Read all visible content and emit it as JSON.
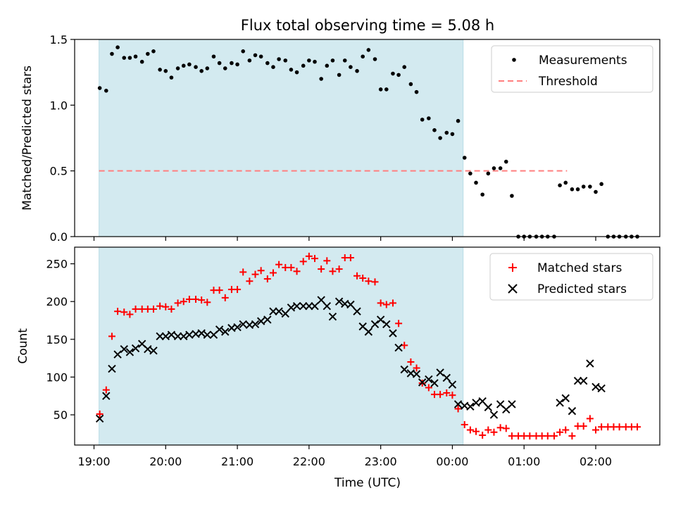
{
  "title": "Flux total observing time = 5.08 h",
  "xlabel": "Time (UTC)",
  "x_tick_labels": [
    "19:00",
    "20:00",
    "21:00",
    "22:00",
    "23:00",
    "00:00",
    "01:00",
    "02:00"
  ],
  "chart_data": [
    {
      "type": "scatter",
      "ylabel": "Matched/Predicted stars",
      "ylim": [
        0,
        1.5
      ],
      "yticks": [
        "0.0",
        "0.5",
        "1.0",
        "1.5"
      ],
      "x_unit": "hours since 19:00 UTC",
      "shaded_region": {
        "x_start": 0.07,
        "x_end": 5.15,
        "color": "#d3eaf0"
      },
      "legend": {
        "position": "top-right",
        "entries": [
          "Measurements",
          "Threshold"
        ]
      },
      "threshold": {
        "name": "Threshold",
        "y": 0.5,
        "x_range": [
          0.07,
          6.6
        ],
        "color": "#ff7f7f"
      },
      "series": [
        {
          "name": "Measurements",
          "color": "#000000",
          "points": [
            [
              0.08,
              1.13
            ],
            [
              0.17,
              1.11
            ],
            [
              0.25,
              1.39
            ],
            [
              0.33,
              1.44
            ],
            [
              0.42,
              1.36
            ],
            [
              0.5,
              1.36
            ],
            [
              0.58,
              1.37
            ],
            [
              0.67,
              1.33
            ],
            [
              0.75,
              1.39
            ],
            [
              0.83,
              1.41
            ],
            [
              0.92,
              1.27
            ],
            [
              1.0,
              1.26
            ],
            [
              1.08,
              1.21
            ],
            [
              1.17,
              1.28
            ],
            [
              1.25,
              1.3
            ],
            [
              1.33,
              1.31
            ],
            [
              1.42,
              1.29
            ],
            [
              1.5,
              1.26
            ],
            [
              1.58,
              1.28
            ],
            [
              1.67,
              1.37
            ],
            [
              1.75,
              1.32
            ],
            [
              1.83,
              1.28
            ],
            [
              1.92,
              1.32
            ],
            [
              2.0,
              1.31
            ],
            [
              2.08,
              1.41
            ],
            [
              2.17,
              1.34
            ],
            [
              2.25,
              1.38
            ],
            [
              2.33,
              1.37
            ],
            [
              2.42,
              1.32
            ],
            [
              2.5,
              1.29
            ],
            [
              2.58,
              1.35
            ],
            [
              2.67,
              1.34
            ],
            [
              2.75,
              1.27
            ],
            [
              2.83,
              1.25
            ],
            [
              2.92,
              1.3
            ],
            [
              3.0,
              1.34
            ],
            [
              3.08,
              1.33
            ],
            [
              3.17,
              1.2
            ],
            [
              3.25,
              1.3
            ],
            [
              3.33,
              1.34
            ],
            [
              3.42,
              1.23
            ],
            [
              3.5,
              1.34
            ],
            [
              3.58,
              1.29
            ],
            [
              3.67,
              1.26
            ],
            [
              3.75,
              1.37
            ],
            [
              3.83,
              1.42
            ],
            [
              3.92,
              1.35
            ],
            [
              4.0,
              1.12
            ],
            [
              4.08,
              1.12
            ],
            [
              4.17,
              1.24
            ],
            [
              4.25,
              1.23
            ],
            [
              4.33,
              1.29
            ],
            [
              4.42,
              1.16
            ],
            [
              4.5,
              1.1
            ],
            [
              4.58,
              0.89
            ],
            [
              4.67,
              0.9
            ],
            [
              4.75,
              0.81
            ],
            [
              4.83,
              0.75
            ],
            [
              4.92,
              0.79
            ],
            [
              5.0,
              0.78
            ],
            [
              5.08,
              0.88
            ],
            [
              5.17,
              0.6
            ],
            [
              5.25,
              0.48
            ],
            [
              5.33,
              0.41
            ],
            [
              5.42,
              0.32
            ],
            [
              5.5,
              0.48
            ],
            [
              5.58,
              0.52
            ],
            [
              5.67,
              0.52
            ],
            [
              5.75,
              0.57
            ],
            [
              5.83,
              0.31
            ],
            [
              5.92,
              0.0
            ],
            [
              6.0,
              0.0
            ],
            [
              6.08,
              0.0
            ],
            [
              6.17,
              0.0
            ],
            [
              6.25,
              0.0
            ],
            [
              6.33,
              0.0
            ],
            [
              6.42,
              0.0
            ],
            [
              6.5,
              0.39
            ],
            [
              6.58,
              0.41
            ],
            [
              6.67,
              0.36
            ],
            [
              6.75,
              0.36
            ],
            [
              6.83,
              0.38
            ],
            [
              6.92,
              0.38
            ],
            [
              7.0,
              0.34
            ],
            [
              7.08,
              0.4
            ],
            [
              7.17,
              0.0
            ],
            [
              7.25,
              0.0
            ],
            [
              7.33,
              0.0
            ],
            [
              7.42,
              0.0
            ],
            [
              7.5,
              0.0
            ],
            [
              7.58,
              0.0
            ]
          ]
        }
      ]
    },
    {
      "type": "scatter",
      "ylabel": "Count",
      "ylim": [
        10,
        272
      ],
      "yticks": [
        "50",
        "100",
        "150",
        "200",
        "250"
      ],
      "x_unit": "hours since 19:00 UTC",
      "shaded_region": {
        "x_start": 0.07,
        "x_end": 5.15,
        "color": "#d3eaf0"
      },
      "legend": {
        "position": "top-right",
        "entries": [
          "Matched stars",
          "Predicted stars"
        ]
      },
      "series": [
        {
          "name": "Matched stars",
          "marker": "plus",
          "color": "#ff0000",
          "points": [
            [
              0.08,
              51
            ],
            [
              0.17,
              83
            ],
            [
              0.25,
              154
            ],
            [
              0.33,
              187
            ],
            [
              0.42,
              186
            ],
            [
              0.5,
              183
            ],
            [
              0.58,
              190
            ],
            [
              0.67,
              190
            ],
            [
              0.75,
              190
            ],
            [
              0.83,
              190
            ],
            [
              0.92,
              194
            ],
            [
              1.0,
              193
            ],
            [
              1.08,
              190
            ],
            [
              1.17,
              198
            ],
            [
              1.25,
              200
            ],
            [
              1.33,
              203
            ],
            [
              1.42,
              203
            ],
            [
              1.5,
              202
            ],
            [
              1.58,
              199
            ],
            [
              1.67,
              215
            ],
            [
              1.75,
              215
            ],
            [
              1.83,
              205
            ],
            [
              1.92,
              216
            ],
            [
              2.0,
              216
            ],
            [
              2.08,
              239
            ],
            [
              2.17,
              227
            ],
            [
              2.25,
              236
            ],
            [
              2.33,
              241
            ],
            [
              2.42,
              230
            ],
            [
              2.5,
              238
            ],
            [
              2.58,
              249
            ],
            [
              2.67,
              245
            ],
            [
              2.75,
              245
            ],
            [
              2.83,
              240
            ],
            [
              2.92,
              253
            ],
            [
              3.0,
              260
            ],
            [
              3.08,
              257
            ],
            [
              3.17,
              243
            ],
            [
              3.25,
              254
            ],
            [
              3.33,
              240
            ],
            [
              3.42,
              243
            ],
            [
              3.5,
              258
            ],
            [
              3.58,
              258
            ],
            [
              3.67,
              234
            ],
            [
              3.75,
              231
            ],
            [
              3.83,
              227
            ],
            [
              3.92,
              226
            ],
            [
              4.0,
              198
            ],
            [
              4.08,
              196
            ],
            [
              4.17,
              198
            ],
            [
              4.25,
              171
            ],
            [
              4.33,
              142
            ],
            [
              4.42,
              120
            ],
            [
              4.5,
              112
            ],
            [
              4.58,
              92
            ],
            [
              4.67,
              86
            ],
            [
              4.75,
              77
            ],
            [
              4.83,
              77
            ],
            [
              4.92,
              79
            ],
            [
              5.0,
              76
            ],
            [
              5.08,
              58
            ],
            [
              5.17,
              37
            ],
            [
              5.25,
              30
            ],
            [
              5.33,
              28
            ],
            [
              5.42,
              23
            ],
            [
              5.5,
              30
            ],
            [
              5.58,
              27
            ],
            [
              5.67,
              33
            ],
            [
              5.75,
              32
            ],
            [
              5.83,
              22
            ],
            [
              5.92,
              22
            ],
            [
              6.0,
              22
            ],
            [
              6.08,
              22
            ],
            [
              6.17,
              22
            ],
            [
              6.25,
              22
            ],
            [
              6.33,
              22
            ],
            [
              6.42,
              22
            ],
            [
              6.5,
              27
            ],
            [
              6.58,
              30
            ],
            [
              6.67,
              22
            ],
            [
              6.75,
              35
            ],
            [
              6.83,
              35
            ],
            [
              6.92,
              45
            ],
            [
              7.0,
              30
            ],
            [
              7.08,
              34
            ],
            [
              7.17,
              34
            ],
            [
              7.25,
              34
            ],
            [
              7.33,
              34
            ],
            [
              7.42,
              34
            ],
            [
              7.5,
              34
            ],
            [
              7.58,
              34
            ]
          ]
        },
        {
          "name": "Predicted stars",
          "marker": "x",
          "color": "#000000",
          "points": [
            [
              0.08,
              45
            ],
            [
              0.17,
              75
            ],
            [
              0.25,
              111
            ],
            [
              0.33,
              130
            ],
            [
              0.42,
              137
            ],
            [
              0.5,
              133
            ],
            [
              0.58,
              138
            ],
            [
              0.67,
              144
            ],
            [
              0.75,
              137
            ],
            [
              0.83,
              135
            ],
            [
              0.92,
              154
            ],
            [
              1.0,
              154
            ],
            [
              1.08,
              156
            ],
            [
              1.17,
              154
            ],
            [
              1.25,
              154
            ],
            [
              1.33,
              156
            ],
            [
              1.42,
              157
            ],
            [
              1.5,
              158
            ],
            [
              1.58,
              156
            ],
            [
              1.67,
              156
            ],
            [
              1.75,
              163
            ],
            [
              1.83,
              160
            ],
            [
              1.92,
              165
            ],
            [
              2.0,
              166
            ],
            [
              2.08,
              170
            ],
            [
              2.17,
              169
            ],
            [
              2.25,
              170
            ],
            [
              2.33,
              174
            ],
            [
              2.42,
              176
            ],
            [
              2.5,
              187
            ],
            [
              2.58,
              187
            ],
            [
              2.67,
              184
            ],
            [
              2.75,
              192
            ],
            [
              2.83,
              194
            ],
            [
              2.92,
              194
            ],
            [
              3.0,
              194
            ],
            [
              3.08,
              194
            ],
            [
              3.17,
              202
            ],
            [
              3.25,
              194
            ],
            [
              3.33,
              180
            ],
            [
              3.42,
              200
            ],
            [
              3.5,
              197
            ],
            [
              3.58,
              196
            ],
            [
              3.67,
              187
            ],
            [
              3.75,
              167
            ],
            [
              3.83,
              160
            ],
            [
              3.92,
              170
            ],
            [
              4.0,
              176
            ],
            [
              4.08,
              170
            ],
            [
              4.17,
              158
            ],
            [
              4.25,
              139
            ],
            [
              4.33,
              110
            ],
            [
              4.42,
              105
            ],
            [
              4.5,
              104
            ],
            [
              4.58,
              93
            ],
            [
              4.67,
              97
            ],
            [
              4.75,
              92
            ],
            [
              4.83,
              106
            ],
            [
              4.92,
              99
            ],
            [
              5.0,
              90
            ],
            [
              5.08,
              64
            ],
            [
              5.17,
              62
            ],
            [
              5.25,
              61
            ],
            [
              5.33,
              66
            ],
            [
              5.42,
              68
            ],
            [
              5.5,
              60
            ],
            [
              5.58,
              50
            ],
            [
              5.67,
              64
            ],
            [
              5.75,
              57
            ],
            [
              5.83,
              64
            ],
            [
              6.5,
              66
            ],
            [
              6.58,
              72
            ],
            [
              6.67,
              55
            ],
            [
              6.75,
              95
            ],
            [
              6.83,
              95
            ],
            [
              6.92,
              118
            ],
            [
              7.0,
              87
            ],
            [
              7.08,
              85
            ]
          ]
        }
      ]
    }
  ]
}
